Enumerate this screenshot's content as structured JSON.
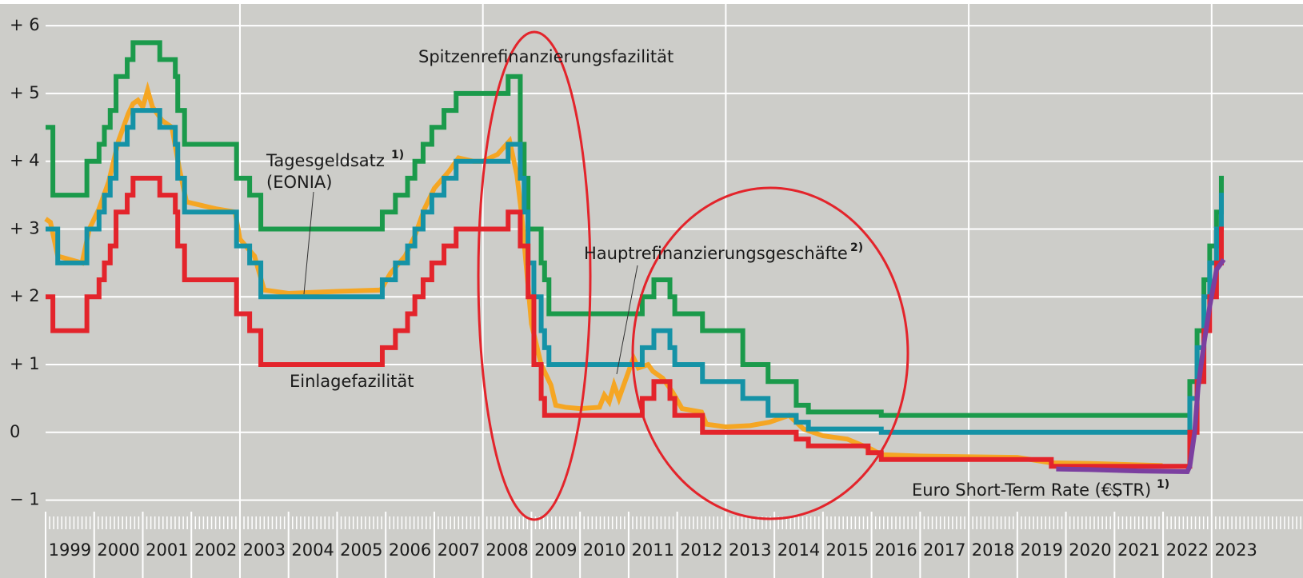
{
  "chart_data": {
    "type": "line",
    "xlim": [
      1999,
      2024.88
    ],
    "ylim": [
      -1.17,
      6.32
    ],
    "yticks": [
      {
        "value": 6,
        "label": "+ 6"
      },
      {
        "value": 5,
        "label": "+ 5"
      },
      {
        "value": 4,
        "label": "+ 4"
      },
      {
        "value": 3,
        "label": "+ 3"
      },
      {
        "value": 2,
        "label": "+ 2"
      },
      {
        "value": 1,
        "label": "+ 1"
      },
      0,
      {
        "value": -1,
        "label": "− 1"
      }
    ],
    "xticks": [
      1999,
      2000,
      2001,
      2002,
      2003,
      2004,
      2005,
      2006,
      2007,
      2008,
      2009,
      2010,
      2011,
      2012,
      2013,
      2014,
      2015,
      2016,
      2017,
      2018,
      2019,
      2020,
      2021,
      2022,
      2023
    ],
    "xgrid": [
      2003,
      2008,
      2013,
      2018,
      2023
    ],
    "grid": true,
    "annotations": [
      {
        "text": "Spitzenrefinanzierungsfazilität"
      },
      {
        "text": "Tagesgeldsatz",
        "note": "1)"
      },
      {
        "text": "(EONIA)"
      },
      {
        "text": "Hauptrefinanzierungsgeschäfte",
        "note": "2)"
      },
      {
        "text": "Einlagefazilität"
      },
      {
        "text": "Euro Short-Term Rate (€STR)",
        "note": "1)"
      }
    ],
    "series": [
      {
        "color": "#1b9a4b",
        "step": true,
        "x": [
          1999.0,
          1999.15,
          1999.85,
          2000.1,
          2000.21,
          2000.33,
          2000.45,
          2000.68,
          2000.8,
          2001.35,
          2001.67,
          2001.72,
          2001.86,
          2002.93,
          2003.2,
          2003.43,
          2005.93,
          2006.2,
          2006.45,
          2006.6,
          2006.77,
          2006.95,
          2007.2,
          2007.45,
          2008.52,
          2008.77,
          2008.85,
          2008.93,
          2009.05,
          2009.2,
          2009.27,
          2009.36,
          2011.28,
          2011.52,
          2011.85,
          2011.95,
          2012.52,
          2013.35,
          2013.87,
          2014.45,
          2014.7,
          2016.2,
          2022.55,
          2022.7,
          2022.84,
          2022.96,
          2023.1,
          2023.2,
          2023.25
        ],
        "values": [
          4.5,
          3.5,
          4.0,
          4.25,
          4.5,
          4.75,
          5.25,
          5.5,
          5.75,
          5.5,
          5.25,
          4.75,
          4.25,
          3.75,
          3.5,
          3.0,
          3.25,
          3.5,
          3.75,
          4.0,
          4.25,
          4.5,
          4.75,
          5.0,
          5.25,
          4.25,
          3.75,
          3.0,
          3.0,
          2.5,
          2.25,
          1.75,
          2.0,
          2.25,
          2.0,
          1.75,
          1.5,
          1.0,
          0.75,
          0.4,
          0.3,
          0.25,
          0.75,
          1.5,
          2.25,
          2.75,
          3.25,
          3.75,
          3.75
        ]
      },
      {
        "color": "#f5a623",
        "step": false,
        "x": [
          1999.0,
          1999.1,
          1999.25,
          1999.5,
          1999.75,
          1999.9,
          2000.1,
          2000.3,
          2000.5,
          2000.7,
          2000.8,
          2000.9,
          2001.0,
          2001.1,
          2001.2,
          2001.4,
          2001.6,
          2001.75,
          2001.9,
          2002.5,
          2002.9,
          2003.0,
          2003.3,
          2003.5,
          2004.0,
          2005.0,
          2005.9,
          2006.1,
          2006.4,
          2006.6,
          2006.8,
          2007.0,
          2007.3,
          2007.5,
          2007.8,
          2008.0,
          2008.3,
          2008.55,
          2008.7,
          2008.8,
          2008.9,
          2009.0,
          2009.2,
          2009.4,
          2009.5,
          2009.7,
          2010.0,
          2010.4,
          2010.5,
          2010.6,
          2010.7,
          2010.8,
          2011.0,
          2011.1,
          2011.2,
          2011.4,
          2011.5,
          2011.7,
          2011.9,
          2012.1,
          2012.5,
          2012.6,
          2013.0,
          2013.5,
          2013.9,
          2014.3,
          2014.6,
          2015.0,
          2015.5,
          2016.0,
          2016.2,
          2017.0,
          2018.0,
          2019.0,
          2019.7,
          2019.8,
          2020.5,
          2021.5,
          2021.99
        ],
        "values": [
          3.15,
          3.1,
          2.6,
          2.55,
          2.5,
          3.0,
          3.3,
          3.7,
          4.3,
          4.7,
          4.85,
          4.9,
          4.8,
          5.05,
          4.8,
          4.6,
          4.5,
          3.9,
          3.4,
          3.3,
          3.25,
          2.85,
          2.6,
          2.1,
          2.05,
          2.08,
          2.1,
          2.35,
          2.6,
          2.9,
          3.3,
          3.6,
          3.85,
          4.05,
          4.0,
          4.0,
          4.1,
          4.3,
          3.8,
          3.2,
          2.4,
          1.6,
          1.0,
          0.7,
          0.4,
          0.37,
          0.35,
          0.37,
          0.55,
          0.45,
          0.7,
          0.5,
          0.9,
          1.1,
          0.95,
          1.0,
          0.9,
          0.8,
          0.6,
          0.35,
          0.3,
          0.12,
          0.08,
          0.1,
          0.15,
          0.25,
          0.05,
          -0.05,
          -0.1,
          -0.25,
          -0.33,
          -0.35,
          -0.36,
          -0.37,
          -0.45,
          -0.45,
          -0.46,
          -0.48,
          -0.49
        ]
      },
      {
        "color": "#1592a6",
        "step": true,
        "x": [
          1999.0,
          1999.25,
          1999.85,
          2000.1,
          2000.21,
          2000.33,
          2000.45,
          2000.68,
          2000.8,
          2001.35,
          2001.67,
          2001.72,
          2001.86,
          2002.93,
          2003.2,
          2003.43,
          2005.93,
          2006.2,
          2006.45,
          2006.6,
          2006.77,
          2006.95,
          2007.2,
          2007.45,
          2008.52,
          2008.77,
          2008.85,
          2008.93,
          2009.05,
          2009.2,
          2009.27,
          2009.36,
          2011.28,
          2011.52,
          2011.85,
          2011.95,
          2012.52,
          2013.35,
          2013.87,
          2014.45,
          2014.7,
          2016.2,
          2022.55,
          2022.7,
          2022.84,
          2022.96,
          2023.1,
          2023.2,
          2023.25
        ],
        "values": [
          3.0,
          2.5,
          3.0,
          3.25,
          3.5,
          3.75,
          4.25,
          4.5,
          4.75,
          4.5,
          4.25,
          3.75,
          3.25,
          2.75,
          2.5,
          2.0,
          2.25,
          2.5,
          2.75,
          3.0,
          3.25,
          3.5,
          3.75,
          4.0,
          4.25,
          3.75,
          3.25,
          2.5,
          2.0,
          1.5,
          1.25,
          1.0,
          1.25,
          1.5,
          1.25,
          1.0,
          0.75,
          0.5,
          0.25,
          0.15,
          0.05,
          0.0,
          0.5,
          1.25,
          2.0,
          2.5,
          3.0,
          3.5,
          3.5
        ]
      },
      {
        "color": "#e3242b",
        "step": true,
        "x": [
          1999.0,
          1999.15,
          1999.85,
          2000.1,
          2000.21,
          2000.33,
          2000.45,
          2000.68,
          2000.8,
          2001.35,
          2001.67,
          2001.72,
          2001.86,
          2002.93,
          2003.2,
          2003.43,
          2005.93,
          2006.2,
          2006.45,
          2006.6,
          2006.77,
          2006.95,
          2007.2,
          2007.45,
          2008.52,
          2008.77,
          2008.93,
          2009.05,
          2009.2,
          2009.27,
          2011.28,
          2011.52,
          2011.85,
          2011.95,
          2012.52,
          2014.45,
          2014.7,
          2015.93,
          2016.2,
          2019.7,
          2022.55,
          2022.7,
          2022.84,
          2022.96,
          2023.1,
          2023.2,
          2023.25
        ],
        "values": [
          2.0,
          1.5,
          2.0,
          2.25,
          2.5,
          2.75,
          3.25,
          3.5,
          3.75,
          3.5,
          3.25,
          2.75,
          2.25,
          1.75,
          1.5,
          1.0,
          1.25,
          1.5,
          1.75,
          2.0,
          2.25,
          2.5,
          2.75,
          3.0,
          3.25,
          2.75,
          2.0,
          1.0,
          0.5,
          0.25,
          0.5,
          0.75,
          0.5,
          0.25,
          0.0,
          -0.1,
          -0.2,
          -0.3,
          -0.4,
          -0.5,
          0.0,
          0.75,
          1.5,
          2.0,
          2.5,
          3.0,
          3.0
        ]
      },
      {
        "color": "#7b3fa0",
        "step": false,
        "x": [
          2019.8,
          2020.5,
          2021.5,
          2022.5,
          2022.55,
          2022.65,
          2022.72,
          2022.85,
          2022.97,
          2023.1,
          2023.25
        ],
        "values": [
          -0.54,
          -0.55,
          -0.57,
          -0.58,
          -0.5,
          0.0,
          0.66,
          1.35,
          1.9,
          2.4,
          2.55
        ]
      }
    ]
  }
}
